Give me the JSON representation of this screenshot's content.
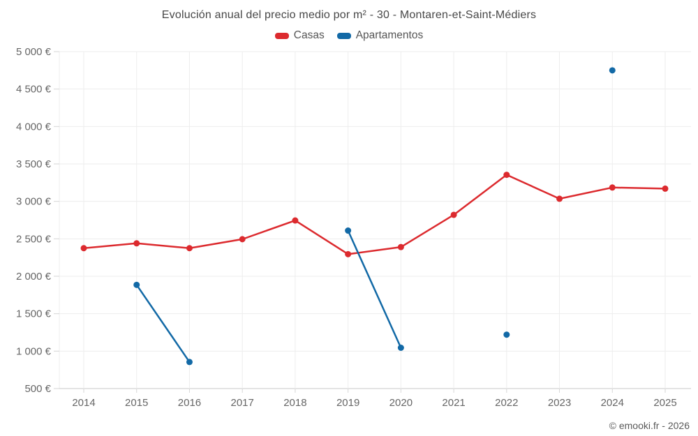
{
  "page": {
    "copyright": "© emooki.fr - 2026"
  },
  "chart_data": {
    "type": "line",
    "title": "Evolución anual del precio medio por m² - 30 - Montaren-et-Saint-Médiers",
    "x": [
      "2014",
      "2015",
      "2016",
      "2017",
      "2018",
      "2019",
      "2020",
      "2021",
      "2022",
      "2023",
      "2024",
      "2025"
    ],
    "series": [
      {
        "name": "Casas",
        "color": "#dc2a2e",
        "values": [
          2375,
          2440,
          2375,
          2495,
          2745,
          2295,
          2390,
          2820,
          3355,
          3035,
          3185,
          3170
        ]
      },
      {
        "name": "Apartamentos",
        "color": "#1269a6",
        "values": [
          null,
          1885,
          855,
          null,
          null,
          2610,
          1045,
          null,
          1220,
          null,
          4750,
          null
        ]
      }
    ],
    "ylabel": "",
    "xlabel": "",
    "ylim": [
      500,
      5000
    ],
    "ytick_step": 500,
    "ytick_suffix": " €",
    "grid": true,
    "legend_position": "top"
  }
}
